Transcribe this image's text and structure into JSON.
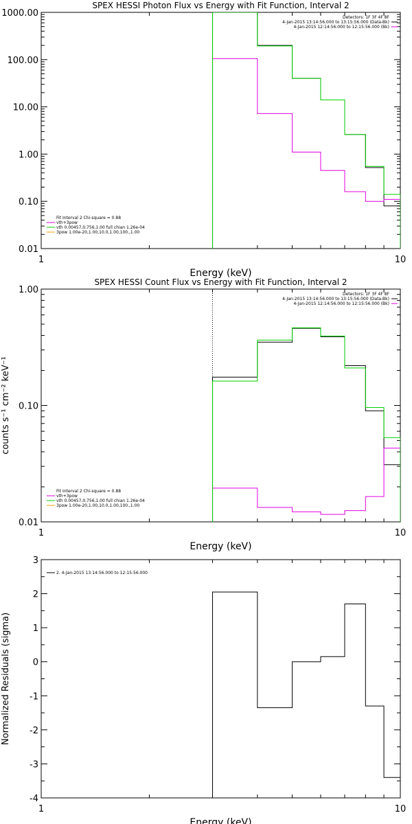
{
  "chart_data": [
    {
      "type": "line",
      "title": "SPEX HESSI Photon Flux vs Energy with Fit Function, Interval 2",
      "xlabel": "Energy (keV)",
      "ylabel": "",
      "xscale": "log",
      "yscale": "log",
      "xlim": [
        1,
        10
      ],
      "ylim": [
        0.01,
        1000
      ],
      "xticks": [
        "1",
        "10"
      ],
      "yticks": [
        "0.01",
        "0.10",
        "1.00",
        "10.00",
        "100.00",
        "1000.00"
      ],
      "yticks_values": [
        0.01,
        0.1,
        1,
        10,
        100,
        1000
      ],
      "legend_right": [
        {
          "text": "Detectors: 1F 3F 4F 8F",
          "color": ""
        },
        {
          "text": "4-Jan-2015 13:14:56.000 to 13:15:56.000 (Data-Bk)",
          "color": "#000000"
        },
        {
          "text": "4-Jan-2015 12:14:56.000 to 12:15:56.000 (Bk)",
          "color": "#e000e0"
        }
      ],
      "legend_left": [
        {
          "text": "Fit Interval  2    Chi-square = 0.88",
          "color": ""
        },
        {
          "text": "vth+3pow",
          "color": "#e000e0"
        },
        {
          "text": "vth 0.00457,0.756,1.00  full chian 1.26e-04",
          "color": "#00d000"
        },
        {
          "text": "3pow 1.00e-20,1.00,10.0,1.00,100.,1.00",
          "color": "#e8a000"
        }
      ],
      "vline": {
        "x": 3.0,
        "color": "#00d000",
        "style": "dotted"
      },
      "series": [
        {
          "color": "#000000",
          "edges": [
            3,
            4,
            5,
            6,
            7,
            8,
            9,
            10
          ],
          "values": [
            1000,
            200,
            40,
            14,
            2.6,
            0.52,
            0.08
          ]
        },
        {
          "color": "#e000e0",
          "edges": [
            3,
            4,
            5,
            6,
            7,
            8,
            9,
            10
          ],
          "values": [
            105,
            7.2,
            1.1,
            0.45,
            0.16,
            0.1,
            0.11
          ]
        },
        {
          "color": "#00d000",
          "edges": [
            3,
            4,
            5,
            6,
            7,
            8,
            9,
            10
          ],
          "values": [
            1000,
            195,
            40,
            14,
            2.6,
            0.55,
            0.14
          ]
        }
      ]
    },
    {
      "type": "line",
      "title": "SPEX HESSI Count Flux vs Energy with Fit Function, Interval 2",
      "xlabel": "Energy (keV)",
      "ylabel": "counts s⁻¹ cm⁻² keV⁻¹",
      "xscale": "log",
      "yscale": "log",
      "xlim": [
        1,
        10
      ],
      "ylim": [
        0.01,
        1.0
      ],
      "xticks": [
        "1",
        "10"
      ],
      "yticks": [
        "0.01",
        "0.10",
        "1.00"
      ],
      "yticks_values": [
        0.01,
        0.1,
        1
      ],
      "legend_right": [
        {
          "text": "Detectors: 1F 3F 4F 8F",
          "color": ""
        },
        {
          "text": "4-Jan-2015 13:14:56.000 to 13:15:56.000 (Data-Bk)",
          "color": "#000000"
        },
        {
          "text": "4-Jan-2015 12:14:56.000 to 12:15:56.000 (Bk)",
          "color": "#e000e0"
        }
      ],
      "legend_left": [
        {
          "text": "Fit Interval  2    Chi-square = 0.88",
          "color": ""
        },
        {
          "text": "vth+3pow",
          "color": "#e000e0"
        },
        {
          "text": "vth 0.00457,0.756,1.00  full chian 1.26e-04",
          "color": "#00d000"
        },
        {
          "text": "3pow 1.00e-20,1.00,10.0,1.00,100.,1.00",
          "color": "#e8a000"
        }
      ],
      "vline": {
        "x": 3.0,
        "color": "#000000",
        "style": "dotted"
      },
      "series": [
        {
          "color": "#000000",
          "edges": [
            3,
            4,
            5,
            6,
            7,
            8,
            9,
            10
          ],
          "values": [
            0.175,
            0.35,
            0.46,
            0.39,
            0.22,
            0.09,
            0.031
          ]
        },
        {
          "color": "#e000e0",
          "edges": [
            3,
            4,
            5,
            6,
            7,
            8,
            9,
            10
          ],
          "values": [
            0.0195,
            0.0133,
            0.0122,
            0.0116,
            0.0125,
            0.0165,
            0.043
          ]
        },
        {
          "color": "#00d000",
          "edges": [
            3,
            4,
            5,
            6,
            7,
            8,
            9,
            10
          ],
          "values": [
            0.162,
            0.365,
            0.465,
            0.395,
            0.21,
            0.096,
            0.053
          ]
        }
      ]
    },
    {
      "type": "line",
      "title": "",
      "xlabel": "Energy (keV)",
      "ylabel": "Normalized Residuals (sigma)",
      "xscale": "log",
      "yscale": "linear",
      "xlim": [
        1,
        10
      ],
      "ylim": [
        -4,
        3
      ],
      "xticks": [
        "1",
        "10"
      ],
      "yticks": [
        "-4",
        "-3",
        "-2",
        "-1",
        "0",
        "1",
        "2",
        "3"
      ],
      "yticks_values": [
        -4,
        -3,
        -2,
        -1,
        0,
        1,
        2,
        3
      ],
      "legend_right": [],
      "legend_left": [
        {
          "text": "2.  4-Jan-2015 13:14:56.000 to 12:15:56.000",
          "color": "#000000"
        }
      ],
      "vline": null,
      "series": [
        {
          "color": "#000000",
          "edges": [
            3,
            4,
            5,
            6,
            7,
            8,
            9,
            10
          ],
          "values": [
            2.05,
            -1.35,
            0.0,
            0.15,
            1.7,
            -1.3,
            -3.4
          ]
        }
      ]
    }
  ]
}
